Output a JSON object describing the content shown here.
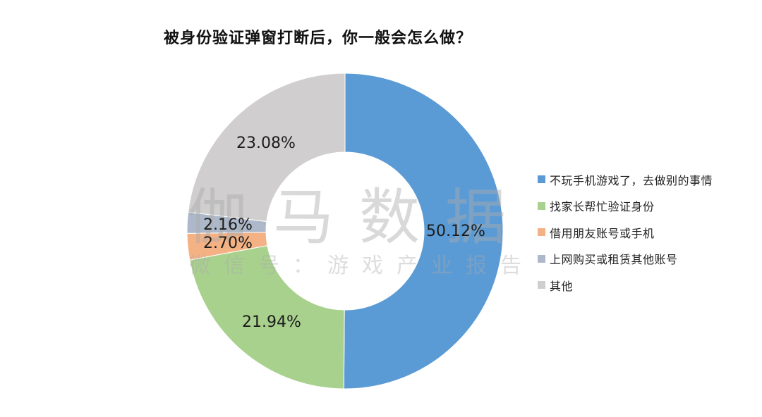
{
  "chart_data": {
    "type": "pie",
    "subtype": "donut",
    "title": "被身份验证弹窗打断后，你一般会怎么做？",
    "categories": [
      "不玩手机游戏了，去做别的事情",
      "找家长帮忙验证身份",
      "借用朋友账号或手机",
      "上网购买或租赁其他账号",
      "其他"
    ],
    "values": [
      50.12,
      21.94,
      2.7,
      2.16,
      23.08
    ],
    "value_labels": [
      "50.12%",
      "21.94%",
      "2.70%",
      "2.16%",
      "23.08%"
    ],
    "colors": [
      "#5b9bd5",
      "#a9d18e",
      "#f4b183",
      "#adb9ca",
      "#d0cece"
    ],
    "start_angle_deg": 0,
    "direction": "clockwise",
    "legend_position": "right",
    "xlabel": "",
    "ylabel": ""
  },
  "watermark": {
    "main": "伽马数据",
    "sub": "微信号：游戏产业报告"
  },
  "legend": [
    {
      "label": "不玩手机游戏了，去做别的事情",
      "color": "#5b9bd5"
    },
    {
      "label": "找家长帮忙验证身份",
      "color": "#a9d18e"
    },
    {
      "label": "借用朋友账号或手机",
      "color": "#f4b183"
    },
    {
      "label": "上网购买或租赁其他账号",
      "color": "#adb9ca"
    },
    {
      "label": "其他",
      "color": "#d0cece"
    }
  ]
}
